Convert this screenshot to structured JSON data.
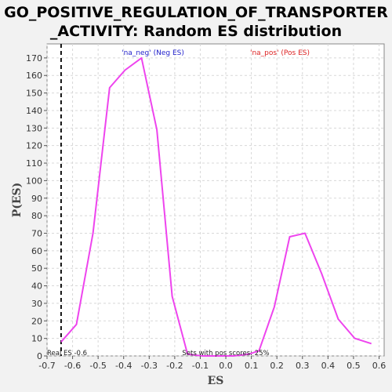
{
  "chart_data": {
    "type": "line",
    "title_lines": [
      "GO_POSITIVE_REGULATION_OF_TRANSPORTER",
      "_ACTIVITY: Random ES distribution"
    ],
    "xlabel": "ES",
    "ylabel": "P(ES)",
    "xlim": [
      -0.7,
      0.62
    ],
    "ylim": [
      0,
      178
    ],
    "x_ticks": [
      -0.7,
      -0.6,
      -0.5,
      -0.4,
      -0.3,
      -0.2,
      -0.1,
      0.0,
      0.1,
      0.2,
      0.3,
      0.4,
      0.5,
      0.6
    ],
    "x_tick_labels": [
      "-0.7",
      "-0.6",
      "-0.5",
      "-0.4",
      "-0.3",
      "-0.2",
      "-0.1",
      "0.0",
      "0.1",
      "0.2",
      "0.3",
      "0.4",
      "0.5",
      "0.6"
    ],
    "y_ticks": [
      0,
      10,
      20,
      30,
      40,
      50,
      60,
      70,
      80,
      90,
      100,
      110,
      120,
      130,
      140,
      150,
      160,
      170
    ],
    "y_tick_labels": [
      "0",
      "10",
      "20",
      "30",
      "40",
      "50",
      "60",
      "70",
      "80",
      "90",
      "100",
      "110",
      "120",
      "130",
      "140",
      "150",
      "160",
      "170"
    ],
    "grid": true,
    "series": [
      {
        "color": "#ee44ee",
        "x": [
          -0.645,
          -0.585,
          -0.52,
          -0.455,
          -0.395,
          -0.33,
          -0.27,
          -0.21,
          -0.15,
          -0.09,
          -0.03,
          0.03,
          0.09,
          0.13,
          0.19,
          0.25,
          0.31,
          0.375,
          0.44,
          0.505,
          0.57
        ],
        "y": [
          8,
          18,
          70,
          153,
          163,
          170,
          129,
          34,
          1,
          0,
          0,
          0,
          1,
          3,
          28,
          68,
          70,
          47,
          21,
          10,
          7
        ]
      }
    ],
    "legend": [
      {
        "label": "'na_neg' (Neg ES)",
        "color": "#2222cc",
        "position": "top-left"
      },
      {
        "label": "'na_pos' (Pos ES)",
        "color": "#dd2222",
        "position": "top-right"
      }
    ],
    "real_es": {
      "x": -0.645,
      "label": "Real ES -0.6"
    },
    "annotation_bottom": "Sets with pos scores: 25%"
  }
}
